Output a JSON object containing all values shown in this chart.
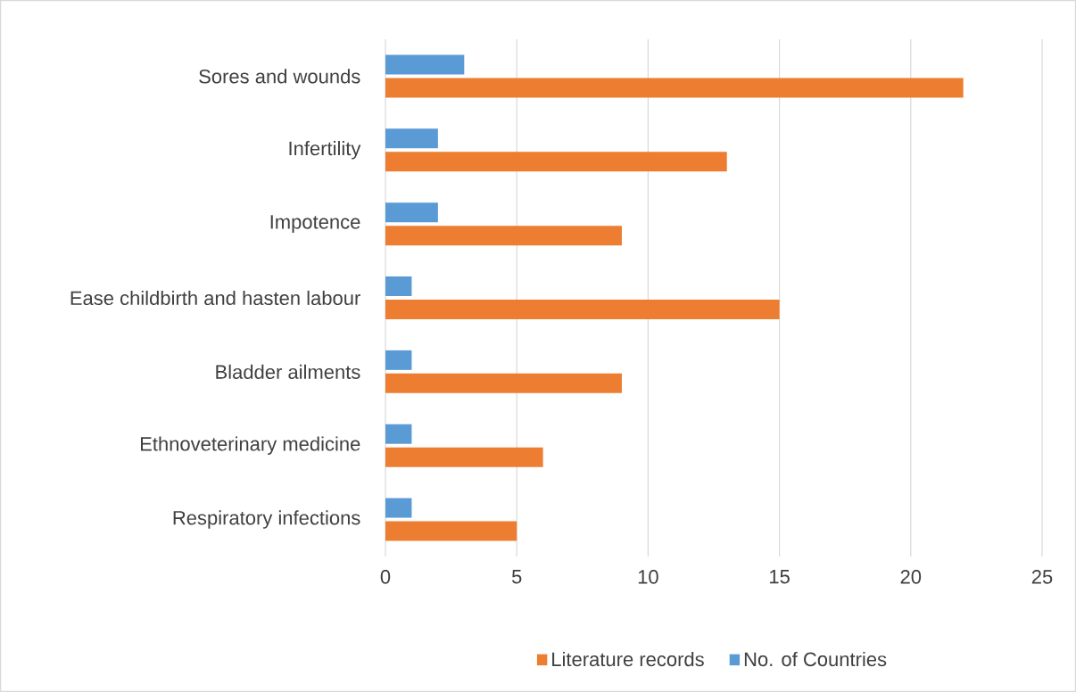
{
  "chart_data": {
    "type": "bar",
    "orientation": "horizontal",
    "categories": [
      "Sores and wounds",
      "Infertility",
      "Impotence",
      "Ease childbirth and hasten labour",
      "Bladder ailments",
      "Ethnoveterinary medicine",
      "Respiratory infections"
    ],
    "series": [
      {
        "name": "Literature records",
        "color": "#ed7d31",
        "values": [
          22,
          13,
          9,
          15,
          9,
          6,
          5
        ]
      },
      {
        "name": "No. of Countries",
        "color": "#5b9bd5",
        "values": [
          3,
          2,
          2,
          1,
          1,
          1,
          1
        ]
      }
    ],
    "xlim": [
      0,
      25
    ],
    "xticks": [
      0,
      5,
      10,
      15,
      20,
      25
    ],
    "grid": "x",
    "legend": "bottom"
  }
}
